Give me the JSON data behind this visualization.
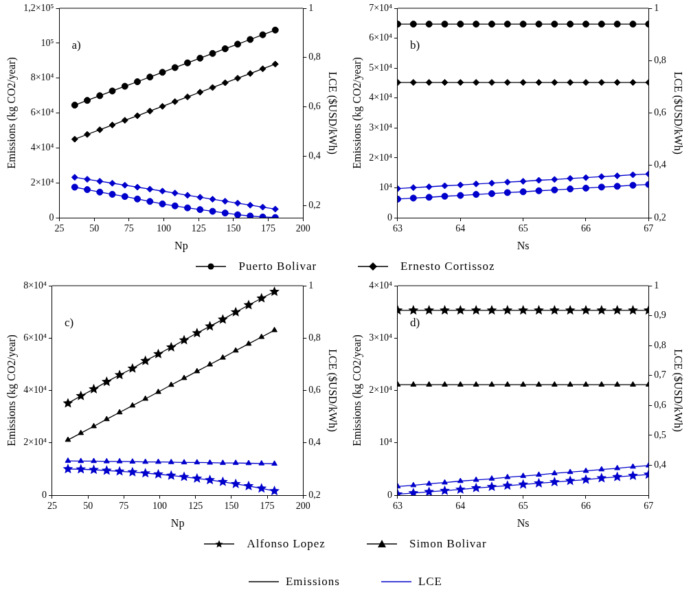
{
  "chart_data": [
    {
      "type": "line",
      "xlabel": "Np",
      "ylabel": "Emissions (kg CO2/year)",
      "y2label": "LCE ($USD/kWh)",
      "annotations": [
        "a)"
      ],
      "legend": "bottom",
      "grid": false,
      "x": [
        36,
        45,
        54,
        63,
        72,
        81,
        90,
        99,
        108,
        117,
        126,
        135,
        144,
        153,
        162,
        171,
        180
      ],
      "xlim": [
        25,
        200
      ],
      "xticks": [
        25,
        50,
        75,
        100,
        125,
        150,
        175,
        200
      ],
      "ylim": [
        0,
        120000
      ],
      "yticks": [
        {
          "value": 0,
          "label": "0"
        },
        {
          "value": 20000,
          "label": "2×10⁴"
        },
        {
          "value": 40000,
          "label": "4×10⁴"
        },
        {
          "value": 60000,
          "label": "6×10⁴"
        },
        {
          "value": 80000,
          "label": "8×10⁴"
        },
        {
          "value": 100000,
          "label": "10⁵"
        },
        {
          "value": 120000,
          "label": "1,2×10⁵"
        }
      ],
      "y2lim": [
        0.15,
        1
      ],
      "y2ticks": [
        {
          "value": 0.2,
          "label": "0,2"
        },
        {
          "value": 0.4,
          "label": "0,4"
        },
        {
          "value": 0.6,
          "label": "0,6"
        },
        {
          "value": 0.8,
          "label": "0,8"
        },
        {
          "value": 1,
          "label": "1"
        }
      ],
      "series": [
        {
          "name": "Puerto Bolivar",
          "color": "#000000",
          "marker": "circle",
          "values": [
            64500,
            67200,
            69900,
            72600,
            75300,
            77900,
            80600,
            83300,
            86000,
            88700,
            91400,
            94100,
            96800,
            99400,
            102100,
            104800,
            107500
          ]
        },
        {
          "name": "Ernesto Cortissoz",
          "color": "#000000",
          "marker": "diamond",
          "values": [
            45000,
            47700,
            50400,
            53100,
            55800,
            58400,
            61100,
            63800,
            66500,
            69200,
            71900,
            74600,
            77300,
            79900,
            82600,
            85300,
            88000
          ]
        },
        {
          "color": "#0000cc",
          "marker": "circle",
          "axis": "y2",
          "values": [
            0.274,
            0.264,
            0.254,
            0.245,
            0.236,
            0.226,
            0.216,
            0.206,
            0.198,
            0.19,
            0.183,
            0.176,
            0.169,
            0.162,
            0.157,
            0.153,
            0.151
          ]
        },
        {
          "color": "#0000cc",
          "marker": "diamond",
          "axis": "y2",
          "values": [
            0.314,
            0.306,
            0.298,
            0.29,
            0.282,
            0.274,
            0.266,
            0.258,
            0.25,
            0.241,
            0.233,
            0.225,
            0.217,
            0.209,
            0.201,
            0.193,
            0.185
          ]
        }
      ]
    },
    {
      "type": "line",
      "xlabel": "Ns",
      "ylabel": "Emissions (kg CO2/year)",
      "y2label": "LCE ($USD/kWh)",
      "annotations": [
        "b)"
      ],
      "grid": false,
      "x": [
        63,
        63.25,
        63.5,
        63.75,
        64,
        64.25,
        64.5,
        64.75,
        65,
        65.25,
        65.5,
        65.75,
        66,
        66.25,
        66.5,
        66.75,
        67
      ],
      "xlim": [
        63,
        67
      ],
      "xticks": [
        63,
        64,
        65,
        66,
        67
      ],
      "ylim": [
        0,
        70000
      ],
      "yticks": [
        {
          "value": 0,
          "label": "0"
        },
        {
          "value": 10000,
          "label": "10⁴"
        },
        {
          "value": 20000,
          "label": "2×10⁴"
        },
        {
          "value": 30000,
          "label": "3×10⁴"
        },
        {
          "value": 40000,
          "label": "4×10⁴"
        },
        {
          "value": 50000,
          "label": "5×10⁴"
        },
        {
          "value": 60000,
          "label": "6×10⁴"
        },
        {
          "value": 70000,
          "label": "7×10⁴"
        }
      ],
      "y2lim": [
        0.2,
        1
      ],
      "y2ticks": [
        {
          "value": 0.2,
          "label": "0,2"
        },
        {
          "value": 0.4,
          "label": "0,4"
        },
        {
          "value": 0.6,
          "label": "0,6"
        },
        {
          "value": 0.8,
          "label": "0,8"
        },
        {
          "value": 1,
          "label": "1"
        }
      ],
      "series": [
        {
          "color": "#000000",
          "marker": "circle",
          "values": [
            64700,
            64700,
            64700,
            64700,
            64700,
            64700,
            64700,
            64700,
            64700,
            64700,
            64700,
            64700,
            64700,
            64700,
            64700,
            64700,
            64700
          ]
        },
        {
          "color": "#000000",
          "marker": "diamond",
          "values": [
            45200,
            45200,
            45200,
            45200,
            45200,
            45200,
            45200,
            45200,
            45200,
            45200,
            45200,
            45200,
            45200,
            45200,
            45200,
            45200,
            45200
          ]
        },
        {
          "color": "#0000cc",
          "marker": "circle",
          "axis": "y2",
          "values": [
            0.271,
            0.275,
            0.278,
            0.282,
            0.285,
            0.289,
            0.292,
            0.296,
            0.299,
            0.303,
            0.306,
            0.31,
            0.313,
            0.317,
            0.32,
            0.324,
            0.327
          ]
        },
        {
          "color": "#0000cc",
          "marker": "diamond",
          "axis": "y2",
          "values": [
            0.311,
            0.315,
            0.318,
            0.322,
            0.325,
            0.329,
            0.332,
            0.336,
            0.339,
            0.343,
            0.346,
            0.35,
            0.353,
            0.357,
            0.36,
            0.364,
            0.367
          ]
        }
      ]
    },
    {
      "type": "line",
      "xlabel": "Np",
      "ylabel": "Emissions (kg CO2/year)",
      "y2label": "LCE ($USD/kWh)",
      "annotations": [
        "c)"
      ],
      "legend": "bottom",
      "grid": false,
      "x": [
        36,
        45,
        54,
        63,
        72,
        81,
        90,
        99,
        108,
        117,
        126,
        135,
        144,
        153,
        162,
        171,
        180
      ],
      "xlim": [
        25,
        200
      ],
      "xticks": [
        25,
        50,
        75,
        100,
        125,
        150,
        175,
        200
      ],
      "ylim": [
        0,
        80000
      ],
      "yticks": [
        {
          "value": 0,
          "label": "0"
        },
        {
          "value": 20000,
          "label": "2×10⁴"
        },
        {
          "value": 40000,
          "label": "4×10⁴"
        },
        {
          "value": 60000,
          "label": "6×10⁴"
        },
        {
          "value": 80000,
          "label": "8×10⁴"
        }
      ],
      "y2lim": [
        0.2,
        1
      ],
      "y2ticks": [
        {
          "value": 0.2,
          "label": "0,2"
        },
        {
          "value": 0.4,
          "label": "0,4"
        },
        {
          "value": 0.6,
          "label": "0,6"
        },
        {
          "value": 0.8,
          "label": "0,8"
        },
        {
          "value": 1,
          "label": "1"
        }
      ],
      "series": [
        {
          "name": "Alfonso Lopez",
          "color": "#000000",
          "marker": "star",
          "values": [
            35100,
            37900,
            40500,
            43300,
            45900,
            48400,
            51300,
            53900,
            56500,
            59200,
            61900,
            64500,
            67100,
            69900,
            72600,
            75200,
            77700
          ]
        },
        {
          "name": "Simon Bolivar",
          "color": "#000000",
          "marker": "triangle",
          "values": [
            21100,
            23700,
            26300,
            29000,
            31600,
            34200,
            36800,
            39400,
            42100,
            44700,
            47300,
            49900,
            52500,
            55200,
            57800,
            60400,
            63000
          ]
        },
        {
          "color": "#0000cc",
          "marker": "star",
          "axis": "y2",
          "values": [
            0.3,
            0.299,
            0.297,
            0.294,
            0.291,
            0.288,
            0.284,
            0.28,
            0.275,
            0.27,
            0.264,
            0.258,
            0.251,
            0.243,
            0.235,
            0.226,
            0.216
          ]
        },
        {
          "color": "#0000cc",
          "marker": "triangle",
          "axis": "y2",
          "values": [
            0.331,
            0.33,
            0.33,
            0.329,
            0.329,
            0.328,
            0.327,
            0.327,
            0.326,
            0.325,
            0.325,
            0.324,
            0.323,
            0.323,
            0.322,
            0.321,
            0.32
          ]
        }
      ]
    },
    {
      "type": "line",
      "xlabel": "Ns",
      "ylabel": "Emissions (kg CO2/year)",
      "y2label": "LCE ($USD/kWh)",
      "annotations": [
        "d)",
        "Emissions",
        "LCE"
      ],
      "grid": false,
      "x": [
        63,
        63.25,
        63.5,
        63.75,
        64,
        64.25,
        64.5,
        64.75,
        65,
        65.25,
        65.5,
        65.75,
        66,
        66.25,
        66.5,
        66.75,
        67
      ],
      "xlim": [
        63,
        67
      ],
      "xticks": [
        63,
        64,
        65,
        66,
        67
      ],
      "ylim": [
        0,
        40000
      ],
      "yticks": [
        {
          "value": 0,
          "label": "0"
        },
        {
          "value": 10000,
          "label": "10⁴"
        },
        {
          "value": 20000,
          "label": "2×10⁴"
        },
        {
          "value": 30000,
          "label": "3×10⁴"
        },
        {
          "value": 40000,
          "label": "4×10⁴"
        }
      ],
      "y2lim": [
        0.3,
        1
      ],
      "y2ticks": [
        {
          "value": 0.4,
          "label": "0,4"
        },
        {
          "value": 0.5,
          "label": "0,5"
        },
        {
          "value": 0.6,
          "label": "0,6"
        },
        {
          "value": 0.7,
          "label": "0,7"
        },
        {
          "value": 0.8,
          "label": "0,8"
        },
        {
          "value": 0.9,
          "label": "0,9"
        },
        {
          "value": 1,
          "label": "1"
        }
      ],
      "series": [
        {
          "color": "#000000",
          "marker": "star",
          "values": [
            35300,
            35300,
            35300,
            35300,
            35300,
            35300,
            35300,
            35300,
            35300,
            35300,
            35300,
            35300,
            35300,
            35300,
            35300,
            35300,
            35300
          ]
        },
        {
          "color": "#000000",
          "marker": "triangle",
          "values": [
            21100,
            21100,
            21100,
            21100,
            21100,
            21100,
            21100,
            21100,
            21100,
            21100,
            21100,
            21100,
            21100,
            21100,
            21100,
            21100,
            21100
          ]
        },
        {
          "color": "#0000cc",
          "marker": "star",
          "axis": "y2",
          "values": [
            0.303,
            0.307,
            0.311,
            0.315,
            0.319,
            0.324,
            0.328,
            0.332,
            0.336,
            0.34,
            0.344,
            0.348,
            0.352,
            0.357,
            0.361,
            0.365,
            0.369
          ]
        },
        {
          "color": "#0000cc",
          "marker": "triangle",
          "axis": "y2",
          "values": [
            0.329,
            0.333,
            0.338,
            0.342,
            0.347,
            0.351,
            0.355,
            0.36,
            0.364,
            0.368,
            0.373,
            0.377,
            0.381,
            0.386,
            0.39,
            0.395,
            0.399
          ]
        }
      ]
    }
  ]
}
